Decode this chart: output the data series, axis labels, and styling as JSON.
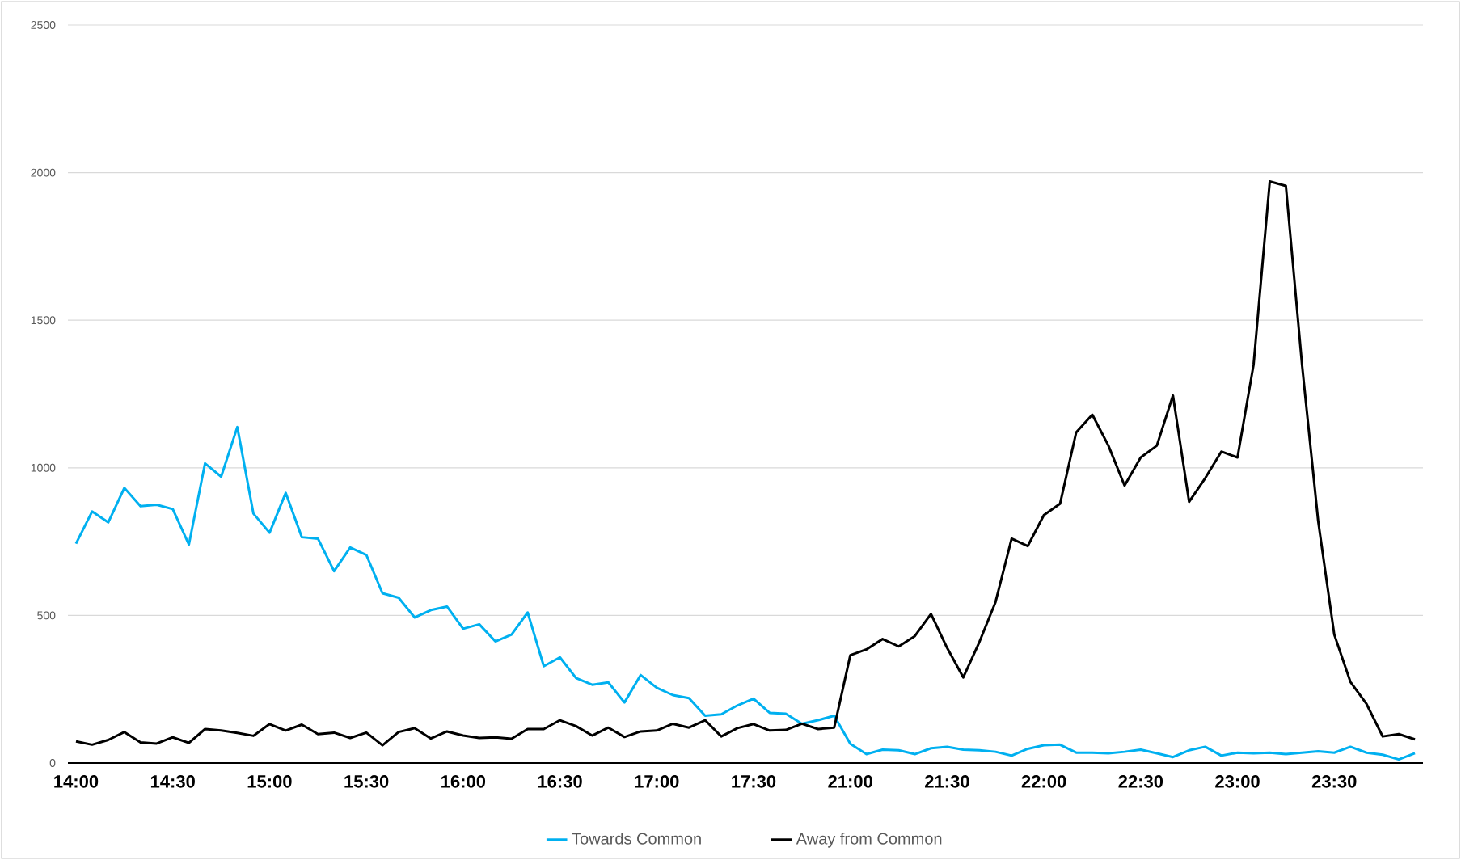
{
  "chart_data": {
    "type": "line",
    "categories": [
      "14:00",
      null,
      null,
      null,
      null,
      null,
      "14:30",
      null,
      null,
      null,
      null,
      null,
      "15:00",
      null,
      null,
      null,
      null,
      null,
      "15:30",
      null,
      null,
      null,
      null,
      null,
      "16:00",
      null,
      null,
      null,
      null,
      null,
      "16:30",
      null,
      null,
      null,
      null,
      null,
      "17:00",
      null,
      null,
      null,
      null,
      null,
      "17:30",
      null,
      null,
      null,
      null,
      null,
      "21:00",
      null,
      null,
      null,
      null,
      null,
      "21:30",
      null,
      null,
      null,
      null,
      null,
      "22:00",
      null,
      null,
      null,
      null,
      null,
      "22:30",
      null,
      null,
      null,
      null,
      null,
      "23:00",
      null,
      null,
      null,
      null,
      null,
      "23:30",
      null,
      null,
      null,
      null,
      null
    ],
    "series": [
      {
        "name": "Towards Common",
        "color": "#00b0f0",
        "values": [
          743,
          852,
          815,
          932,
          870,
          875,
          860,
          740,
          1015,
          970,
          1138,
          845,
          780,
          915,
          765,
          760,
          650,
          730,
          705,
          575,
          560,
          493,
          518,
          530,
          455,
          470,
          412,
          435,
          510,
          328,
          358,
          288,
          265,
          273,
          205,
          298,
          255,
          230,
          220,
          160,
          165,
          195,
          218,
          170,
          167,
          133,
          145,
          160,
          65,
          30,
          45,
          43,
          30,
          50,
          55,
          45,
          43,
          38,
          25,
          48,
          60,
          62,
          35,
          35,
          33,
          38,
          45,
          33,
          20,
          43,
          55,
          25,
          35,
          33,
          35,
          30,
          35,
          40,
          35,
          55,
          35,
          28,
          12,
          33
        ]
      },
      {
        "name": "Away from Common",
        "color": "#000000",
        "values": [
          73,
          62,
          78,
          105,
          70,
          66,
          87,
          68,
          115,
          110,
          102,
          92,
          132,
          110,
          130,
          98,
          103,
          85,
          103,
          60,
          105,
          118,
          83,
          107,
          93,
          85,
          87,
          82,
          115,
          115,
          145,
          125,
          93,
          120,
          88,
          107,
          110,
          133,
          120,
          145,
          90,
          118,
          132,
          110,
          112,
          133,
          115,
          120,
          365,
          385,
          420,
          395,
          430,
          505,
          390,
          290,
          410,
          545,
          760,
          735,
          840,
          878,
          1120,
          1180,
          1075,
          940,
          1035,
          1075,
          1245,
          885,
          965,
          1055,
          1035,
          1350,
          1970,
          1955,
          1350,
          820,
          435,
          275,
          200,
          90,
          98,
          80
        ]
      }
    ],
    "ylim": [
      0,
      2500
    ],
    "yticks": [
      0,
      500,
      1000,
      1500,
      2000,
      2500
    ],
    "grid": "y",
    "legend": "bottom"
  }
}
